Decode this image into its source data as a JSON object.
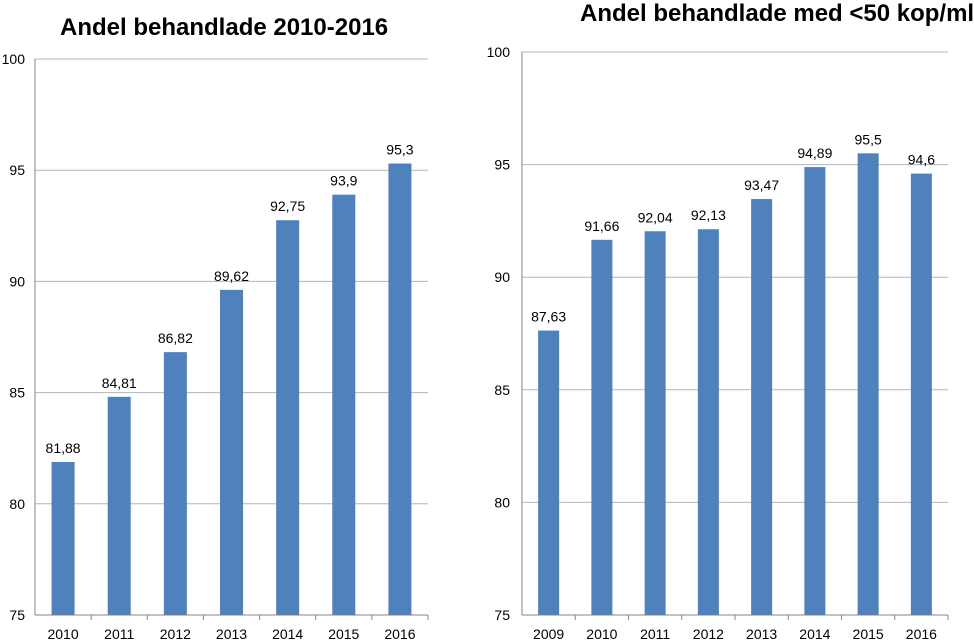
{
  "chart_data": [
    {
      "type": "bar",
      "title": "Andel behandlade 2010-2016",
      "categories": [
        "2010",
        "2011",
        "2012",
        "2013",
        "2014",
        "2015",
        "2016"
      ],
      "values": [
        81.88,
        84.81,
        86.82,
        89.62,
        92.75,
        93.9,
        95.3
      ],
      "data_labels": [
        "81,88",
        "84,81",
        "86,82",
        "89,62",
        "92,75",
        "93,9",
        "95,3"
      ],
      "yticks": [
        "75",
        "80",
        "85",
        "90",
        "95",
        "100"
      ],
      "ylim": [
        75,
        100
      ],
      "xlabel": "",
      "ylabel": "",
      "grid": true,
      "bar_color": "#4F81BD"
    },
    {
      "type": "bar",
      "title": "Andel behandlade med <50 kop/ml",
      "categories": [
        "2009",
        "2010",
        "2011",
        "2012",
        "2013",
        "2014",
        "2015",
        "2016"
      ],
      "values": [
        87.63,
        91.66,
        92.04,
        92.13,
        93.47,
        94.89,
        95.5,
        94.6
      ],
      "data_labels": [
        "87,63",
        "91,66",
        "92,04",
        "92,13",
        "93,47",
        "94,89",
        "95,5",
        "94,6"
      ],
      "yticks": [
        "75",
        "80",
        "85",
        "90",
        "95",
        "100"
      ],
      "ylim": [
        75,
        100
      ],
      "xlabel": "",
      "ylabel": "",
      "grid": true,
      "bar_color": "#4F81BD"
    }
  ]
}
